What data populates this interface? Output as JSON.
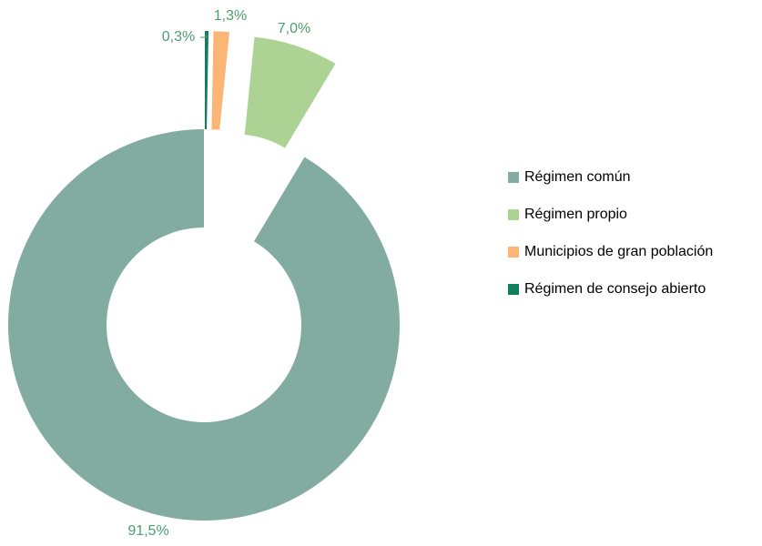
{
  "chart_data": {
    "type": "donut",
    "categories": [
      "Régimen de consejo abierto",
      "Municipios de gran población",
      "Régimen propio",
      "Régimen común"
    ],
    "values": [
      0.3,
      1.3,
      7.0,
      91.5
    ],
    "value_labels": [
      "0,3%",
      "1,3%",
      "7,0%",
      "91,5%"
    ],
    "colors": [
      "#0f7f5c",
      "#fdb576",
      "#add394",
      "#82aba2"
    ],
    "exploded": [
      true,
      true,
      true,
      false
    ],
    "legend": "right"
  }
}
